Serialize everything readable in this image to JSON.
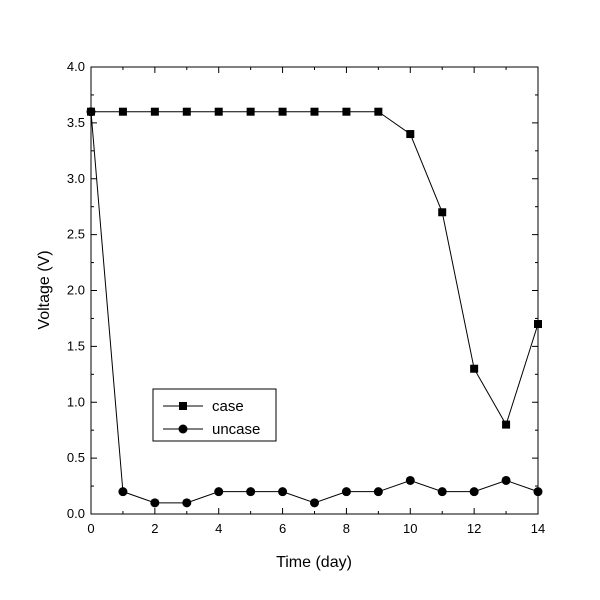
{
  "chart_data": {
    "type": "line",
    "xlabel": "Time (day)",
    "ylabel": "Voltage (V)",
    "xlim": [
      0,
      14
    ],
    "ylim": [
      0,
      4.0
    ],
    "xticks": [
      "0",
      "2",
      "4",
      "6",
      "8",
      "10",
      "12",
      "14"
    ],
    "yticks": [
      "0.0",
      "0.5",
      "1.0",
      "1.5",
      "2.0",
      "2.5",
      "3.0",
      "3.5",
      "4.0"
    ],
    "x": [
      0,
      1,
      2,
      3,
      4,
      5,
      6,
      7,
      8,
      9,
      10,
      11,
      12,
      13,
      14
    ],
    "series": [
      {
        "name": "case",
        "marker": "square",
        "values": [
          3.6,
          3.6,
          3.6,
          3.6,
          3.6,
          3.6,
          3.6,
          3.6,
          3.6,
          3.6,
          3.4,
          2.7,
          1.3,
          0.8,
          1.7
        ]
      },
      {
        "name": "uncase",
        "marker": "circle",
        "values": [
          3.6,
          0.2,
          0.1,
          0.1,
          0.2,
          0.2,
          0.2,
          0.1,
          0.2,
          0.2,
          0.3,
          0.2,
          0.2,
          0.3,
          0.2
        ]
      }
    ],
    "legend_position": "lower-left",
    "grid": false,
    "colors": {
      "line": "#000000",
      "marker": "#000000",
      "background": "#ffffff"
    }
  }
}
